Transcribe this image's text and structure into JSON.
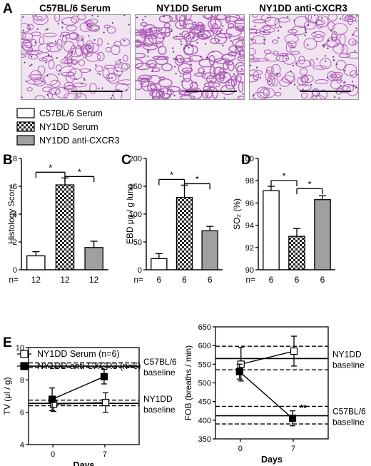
{
  "panel_letters": [
    "A",
    "B",
    "C",
    "D",
    "E"
  ],
  "panel_a": {
    "titles": [
      "C57BL/6 Serum",
      "NY1DD Serum",
      "NY1DD anti-CXCR3"
    ]
  },
  "legend": {
    "items": [
      {
        "label": "C57BL/6 Serum",
        "pattern": "white"
      },
      {
        "label": "NY1DD Serum",
        "pattern": "checker"
      },
      {
        "label": "NY1DD anti-CXCR3",
        "pattern": "gray"
      }
    ]
  },
  "n_prefix": "n=",
  "colors": {
    "bar_gray": "#a0a0a0",
    "tissue_bg": "#efe4f0",
    "tissue_fiber": "#b060b8",
    "tissue_nuclei": "#6a2f86"
  },
  "chart_data": [
    {
      "panel": "B",
      "type": "bar",
      "ylabel": "Histology Score",
      "ylim": [
        0,
        8
      ],
      "yticks": [
        0,
        2,
        4,
        6,
        8
      ],
      "categories": [
        "C57BL/6 Serum",
        "NY1DD Serum",
        "NY1DD anti-CXCR3"
      ],
      "values": [
        1.0,
        6.1,
        1.6
      ],
      "errors": [
        0.3,
        0.5,
        0.45
      ],
      "n": [
        "12",
        "12",
        "12"
      ],
      "significance": [
        "*",
        "*"
      ]
    },
    {
      "panel": "C",
      "type": "bar",
      "ylabel": "EBD μg / g lung",
      "ylim": [
        0,
        200
      ],
      "yticks": [
        0,
        50,
        100,
        150,
        200
      ],
      "categories": [
        "C57BL/6 Serum",
        "NY1DD Serum",
        "NY1DD anti-CXCR3"
      ],
      "values": [
        20,
        130,
        70
      ],
      "errors": [
        9,
        22,
        8
      ],
      "n": [
        "6",
        "6",
        "6"
      ],
      "significance": [
        "*",
        "*"
      ]
    },
    {
      "panel": "D",
      "type": "bar",
      "ylabel": "SO₂ (%)",
      "ylim": [
        90,
        100
      ],
      "yticks": [
        90,
        92,
        94,
        96,
        98,
        100
      ],
      "categories": [
        "C57BL/6 Serum",
        "NY1DD Serum",
        "NY1DD anti-CXCR3"
      ],
      "values": [
        97.1,
        93.0,
        96.3
      ],
      "errors": [
        0.4,
        0.7,
        0.35
      ],
      "n": [
        "6",
        "6",
        "6"
      ],
      "significance": [
        "*",
        "*"
      ]
    },
    {
      "panel": "E-left",
      "type": "line",
      "ylabel": "TV (μl / g)",
      "xlabel": "Days",
      "x": [
        0,
        7
      ],
      "xticks": [
        "0",
        "7"
      ],
      "ylim": [
        4,
        10
      ],
      "yticks": [
        4,
        6,
        8,
        10
      ],
      "series": [
        {
          "name": "NY1DD Serum (n=6)",
          "marker": "open-square",
          "values": [
            6.5,
            6.6
          ],
          "errors": [
            0.45,
            0.6
          ]
        },
        {
          "name": "NY1DD anti-CXCR3 (n=6)",
          "marker": "filled-square",
          "values": [
            6.8,
            8.2
          ],
          "errors": [
            0.7,
            0.45
          ]
        }
      ],
      "baselines": [
        {
          "label": "C57BL/6\nbaseline",
          "mean": 8.85,
          "band": [
            8.75,
            9.05
          ]
        },
        {
          "label": "NY1DD\nbaseline",
          "mean": 6.55,
          "band": [
            6.4,
            6.75
          ]
        }
      ]
    },
    {
      "panel": "E-right",
      "type": "line",
      "ylabel": "FOB (breaths / min)",
      "xlabel": "Days",
      "x": [
        0,
        7
      ],
      "xticks": [
        "0",
        "7"
      ],
      "ylim": [
        350,
        650
      ],
      "yticks": [
        350,
        400,
        450,
        500,
        550,
        600,
        650
      ],
      "series": [
        {
          "name": "NY1DD Serum (n=6)",
          "marker": "open-square",
          "values": [
            550,
            585
          ],
          "errors": [
            45,
            40
          ]
        },
        {
          "name": "NY1DD anti-CXCR3 (n=6)",
          "marker": "filled-square",
          "values": [
            530,
            405
          ],
          "errors": [
            20,
            20
          ]
        }
      ],
      "annotation": "**",
      "baselines": [
        {
          "label": "NY1DD\nbaseline",
          "mean": 565,
          "band": [
            535,
            598
          ]
        },
        {
          "label": "C57BL/6\nbaseline",
          "mean": 412,
          "band": [
            390,
            437
          ]
        }
      ]
    }
  ]
}
